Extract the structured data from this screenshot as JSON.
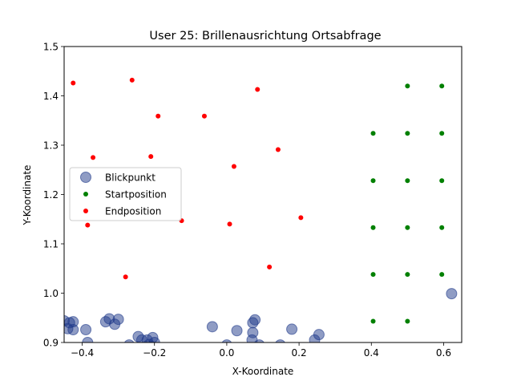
{
  "chart_data": {
    "type": "scatter",
    "title": "User 25: Brillenausrichtung Ortsabfrage",
    "xlabel": "X-Koordinate",
    "ylabel": "Y-Koordinate",
    "xlim": [
      -0.45,
      0.65
    ],
    "ylim": [
      0.9,
      1.5
    ],
    "xticks": [
      -0.4,
      -0.2,
      0.0,
      0.2,
      0.4,
      0.6
    ],
    "xtick_labels": [
      "−0.4",
      "−0.2",
      "0.0",
      "0.2",
      "0.4",
      "0.6"
    ],
    "yticks": [
      0.9,
      1.0,
      1.1,
      1.2,
      1.3,
      1.4,
      1.5
    ],
    "ytick_labels": [
      "0.9",
      "1.0",
      "1.1",
      "1.2",
      "1.3",
      "1.4",
      "1.5"
    ],
    "grid": false,
    "legend_position": "center-left",
    "series": [
      {
        "name": "Blickpunkt",
        "color": "#1f3a8a",
        "marker": "large-circle-translucent",
        "points": [
          [
            -0.45,
            0.944
          ],
          [
            -0.44,
            0.928
          ],
          [
            -0.435,
            0.94
          ],
          [
            -0.425,
            0.942
          ],
          [
            -0.425,
            0.926
          ],
          [
            -0.39,
            0.926
          ],
          [
            -0.385,
            0.9
          ],
          [
            -0.335,
            0.942
          ],
          [
            -0.325,
            0.948
          ],
          [
            -0.31,
            0.937
          ],
          [
            -0.3,
            0.947
          ],
          [
            -0.27,
            0.895
          ],
          [
            -0.245,
            0.912
          ],
          [
            -0.235,
            0.905
          ],
          [
            -0.22,
            0.905
          ],
          [
            -0.215,
            0.896
          ],
          [
            -0.205,
            0.91
          ],
          [
            -0.2,
            0.9
          ],
          [
            -0.04,
            0.932
          ],
          [
            0.0,
            0.895
          ],
          [
            0.028,
            0.924
          ],
          [
            0.07,
            0.905
          ],
          [
            0.072,
            0.94
          ],
          [
            0.072,
            0.92
          ],
          [
            0.078,
            0.946
          ],
          [
            0.09,
            0.895
          ],
          [
            0.148,
            0.895
          ],
          [
            0.18,
            0.927
          ],
          [
            0.243,
            0.905
          ],
          [
            0.255,
            0.916
          ],
          [
            0.622,
            0.999
          ]
        ]
      },
      {
        "name": "Startposition",
        "color": "#008000",
        "marker": "small-dot",
        "points": [
          [
            0.405,
            0.943
          ],
          [
            0.5,
            0.943
          ],
          [
            0.405,
            1.038
          ],
          [
            0.5,
            1.038
          ],
          [
            0.595,
            1.038
          ],
          [
            0.405,
            1.133
          ],
          [
            0.5,
            1.133
          ],
          [
            0.595,
            1.133
          ],
          [
            0.405,
            1.228
          ],
          [
            0.5,
            1.228
          ],
          [
            0.595,
            1.228
          ],
          [
            0.405,
            1.324
          ],
          [
            0.5,
            1.324
          ],
          [
            0.595,
            1.324
          ],
          [
            0.5,
            1.42
          ],
          [
            0.595,
            1.42
          ]
        ]
      },
      {
        "name": "Endposition",
        "color": "#ff0000",
        "marker": "small-dot",
        "points": [
          [
            -0.425,
            1.426
          ],
          [
            -0.262,
            1.432
          ],
          [
            0.085,
            1.413
          ],
          [
            -0.19,
            1.359
          ],
          [
            -0.062,
            1.359
          ],
          [
            -0.37,
            1.275
          ],
          [
            -0.21,
            1.277
          ],
          [
            0.142,
            1.291
          ],
          [
            0.02,
            1.257
          ],
          [
            -0.125,
            1.147
          ],
          [
            0.008,
            1.14
          ],
          [
            0.205,
            1.153
          ],
          [
            -0.385,
            1.138
          ],
          [
            0.118,
            1.053
          ],
          [
            -0.28,
            1.033
          ]
        ]
      }
    ]
  }
}
